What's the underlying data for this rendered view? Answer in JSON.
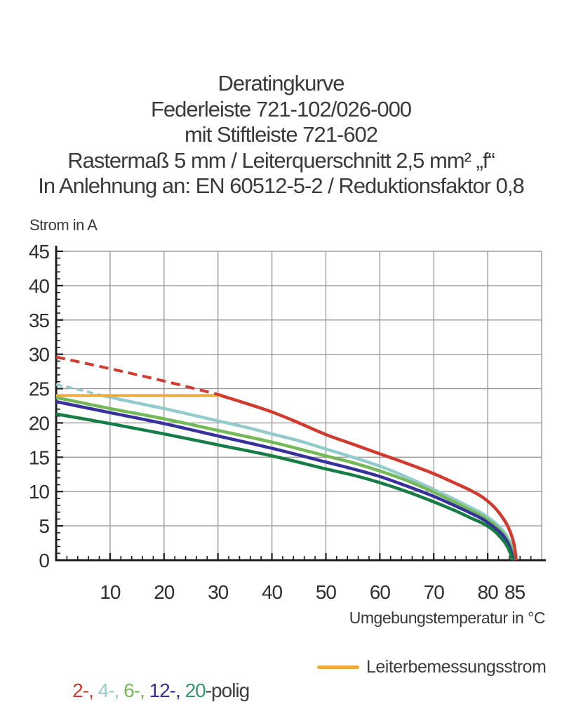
{
  "title": {
    "lines": [
      "Deratingkurve",
      "Federleiste 721-102/026-000",
      "mit Stiftleiste 721-602",
      "Rastermaß 5 mm / Leiterquerschnitt 2,5 mm² „f“",
      "In Anlehnung an: EN 60512-5-2 / Reduktionsfaktor 0,8"
    ]
  },
  "chart_data": {
    "type": "line",
    "title": "Deratingkurve",
    "y_axis_title": "Strom in A",
    "x_axis_title": "Umgebungstemperatur in °C",
    "x_range": [
      0,
      90
    ],
    "y_range": [
      0,
      45
    ],
    "x_tick_values": [
      10,
      20,
      30,
      40,
      50,
      60,
      70,
      80,
      85
    ],
    "x_tick_labels": [
      "10",
      "20",
      "30",
      "40",
      "50",
      "60",
      "70",
      "80",
      "85"
    ],
    "y_tick_values": [
      0,
      5,
      10,
      15,
      20,
      25,
      30,
      35,
      40,
      45
    ],
    "y_tick_labels": [
      "0",
      "5",
      "10",
      "15",
      "20",
      "25",
      "30",
      "35",
      "40",
      "45"
    ],
    "x_minor_step": 2,
    "y_minor_step": 1,
    "grid": true,
    "grid_color": "#9b9b9b",
    "axis_color": "#1d1d1d",
    "series": [
      {
        "name": "4-polig",
        "color": "#93cbcd",
        "width": 4.5,
        "dash": null,
        "points": [
          [
            8.5,
            24.0
          ],
          [
            15,
            22.9
          ],
          [
            20,
            22.1
          ],
          [
            25,
            21.2
          ],
          [
            30,
            20.3
          ],
          [
            35,
            19.4
          ],
          [
            40,
            18.4
          ],
          [
            45,
            17.4
          ],
          [
            50,
            16.2
          ],
          [
            55,
            15.0
          ],
          [
            60,
            13.7
          ],
          [
            65,
            12.1
          ],
          [
            70,
            10.3
          ],
          [
            74,
            8.8
          ],
          [
            77,
            7.6
          ],
          [
            79,
            6.8
          ],
          [
            81,
            5.7
          ],
          [
            82.5,
            4.6
          ],
          [
            83.7,
            3.3
          ],
          [
            84.5,
            1.9
          ],
          [
            84.9,
            0
          ]
        ]
      },
      {
        "name": "6-polig",
        "color": "#74b857",
        "width": 4.5,
        "dash": null,
        "points": [
          [
            0,
            23.7
          ],
          [
            10,
            22.1
          ],
          [
            20,
            20.6
          ],
          [
            30,
            18.9
          ],
          [
            40,
            17.2
          ],
          [
            50,
            15.2
          ],
          [
            55,
            14.2
          ],
          [
            60,
            13.0
          ],
          [
            65,
            11.6
          ],
          [
            70,
            9.9
          ],
          [
            74,
            8.4
          ],
          [
            77,
            7.2
          ],
          [
            79,
            6.4
          ],
          [
            81,
            5.3
          ],
          [
            82.5,
            4.2
          ],
          [
            83.7,
            2.9
          ],
          [
            84.4,
            1.6
          ],
          [
            84.8,
            0
          ]
        ]
      },
      {
        "name": "12-polig",
        "color": "#37329b",
        "width": 4.5,
        "dash": null,
        "points": [
          [
            0,
            23.1
          ],
          [
            10,
            21.5
          ],
          [
            20,
            19.9
          ],
          [
            30,
            18.1
          ],
          [
            40,
            16.3
          ],
          [
            50,
            14.3
          ],
          [
            55,
            13.3
          ],
          [
            60,
            12.2
          ],
          [
            65,
            10.8
          ],
          [
            70,
            9.3
          ],
          [
            74,
            7.9
          ],
          [
            77,
            6.8
          ],
          [
            79,
            6.0
          ],
          [
            81,
            4.9
          ],
          [
            82.5,
            3.9
          ],
          [
            83.6,
            2.7
          ],
          [
            84.3,
            1.4
          ],
          [
            84.7,
            0
          ]
        ]
      },
      {
        "name": "20-polig",
        "color": "#157d45",
        "width": 4.5,
        "dash": null,
        "points": [
          [
            0,
            21.3
          ],
          [
            10,
            19.9
          ],
          [
            20,
            18.4
          ],
          [
            30,
            16.8
          ],
          [
            40,
            15.2
          ],
          [
            50,
            13.3
          ],
          [
            55,
            12.4
          ],
          [
            60,
            11.3
          ],
          [
            65,
            10.0
          ],
          [
            70,
            8.5
          ],
          [
            74,
            7.2
          ],
          [
            77,
            6.1
          ],
          [
            79,
            5.4
          ],
          [
            81,
            4.4
          ],
          [
            82.3,
            3.4
          ],
          [
            83.4,
            2.3
          ],
          [
            84.1,
            1.2
          ],
          [
            84.6,
            0
          ]
        ]
      },
      {
        "name": "4-polig-grenzbereich",
        "color": "#93cbcd",
        "width": 3.5,
        "dash": "9 6",
        "points": [
          [
            0,
            25.6
          ],
          [
            4,
            24.9
          ],
          [
            8.5,
            24.0
          ]
        ]
      },
      {
        "name": "Leiterbemessungsstrom",
        "color": "#f0a93c",
        "width": 4,
        "dash": null,
        "points": [
          [
            0,
            24
          ],
          [
            16,
            24
          ],
          [
            31,
            24
          ]
        ]
      },
      {
        "name": "2-polig-grenzbereich",
        "color": "#d13a2e",
        "width": 4,
        "dash": "13 8",
        "points": [
          [
            0,
            29.6
          ],
          [
            10,
            27.9
          ],
          [
            20,
            26.1
          ],
          [
            30.5,
            24.05
          ]
        ]
      },
      {
        "name": "2-polig",
        "color": "#d13a2e",
        "width": 4.5,
        "dash": null,
        "points": [
          [
            30.5,
            24.0
          ],
          [
            35,
            22.9
          ],
          [
            40,
            21.6
          ],
          [
            45,
            20.0
          ],
          [
            50,
            18.3
          ],
          [
            55,
            16.9
          ],
          [
            60,
            15.5
          ],
          [
            65,
            14.1
          ],
          [
            70,
            12.6
          ],
          [
            74,
            11.2
          ],
          [
            77,
            10.1
          ],
          [
            79,
            9.2
          ],
          [
            81,
            7.9
          ],
          [
            82.5,
            6.5
          ],
          [
            83.8,
            4.8
          ],
          [
            84.8,
            2.6
          ],
          [
            85.3,
            0
          ]
        ]
      }
    ]
  },
  "legend": {
    "poles": {
      "segments": [
        {
          "text": "2-, ",
          "color": "#d13a2e"
        },
        {
          "text": "4-, ",
          "color": "#93cbcd"
        },
        {
          "text": "6-, ",
          "color": "#74b857"
        },
        {
          "text": "12-, ",
          "color": "#37329b"
        },
        {
          "text": "20",
          "color": "#2f9b6d"
        },
        {
          "text": "-polig",
          "color": "#3d3d3d"
        }
      ]
    },
    "conductor": {
      "label": "Leiterbemessungsstrom",
      "color": "#f0a93c"
    }
  }
}
